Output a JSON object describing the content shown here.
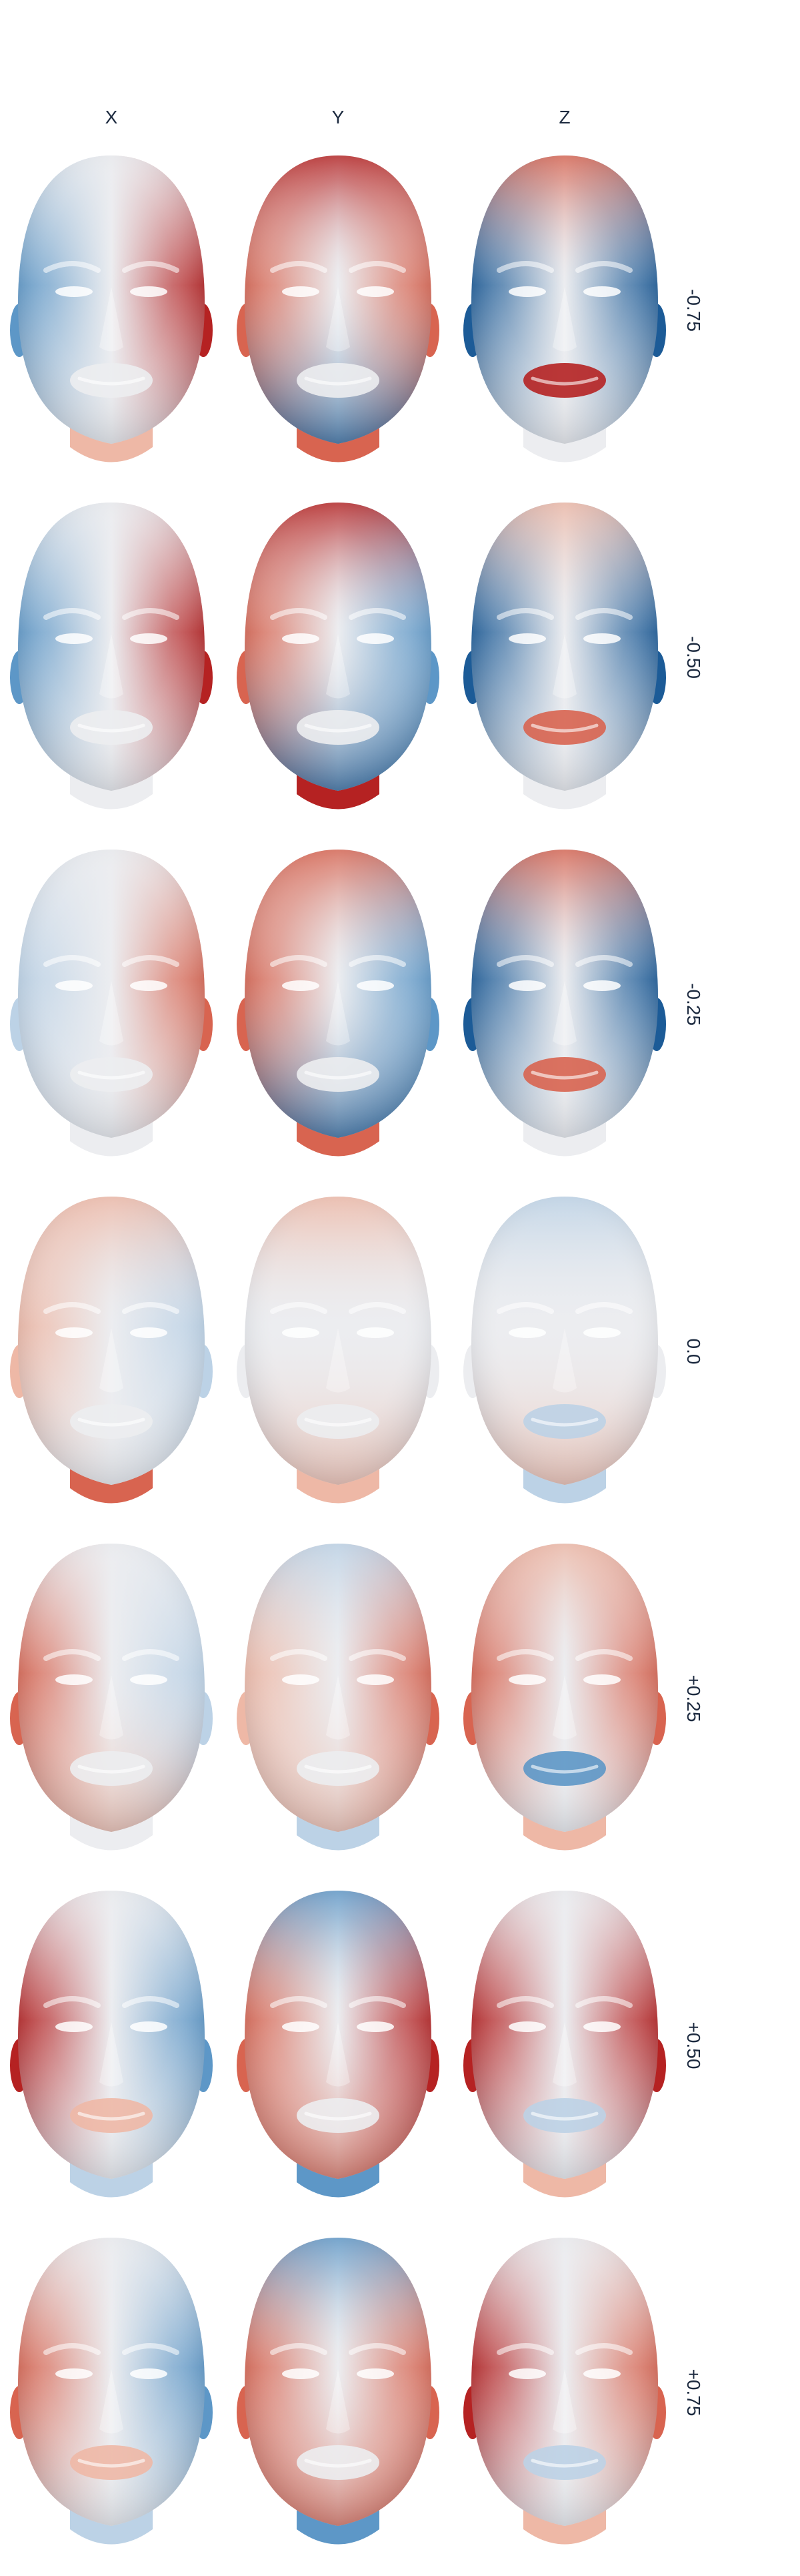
{
  "columns": [
    "X",
    "Y",
    "Z"
  ],
  "rows": [
    "-0.75",
    "-0.50",
    "-0.25",
    "0.0",
    "+0.25",
    "+0.50",
    "+0.75"
  ],
  "colors": {
    "red_strong": "#b52222",
    "red": "#d86450",
    "red_light": "#eeb8a6",
    "neutral": "#ecedf0",
    "blue_light": "#bcd2e6",
    "blue": "#5d97c7",
    "blue_strong": "#1c5b97"
  },
  "grid": [
    [
      {
        "left": "blue",
        "right": "red_strong",
        "top": "neutral",
        "bottom": "neutral",
        "neck": "red_light",
        "mouth": "neutral"
      },
      {
        "left": "red",
        "right": "red",
        "top": "red_strong",
        "bottom": "blue_strong",
        "neck": "red",
        "mouth": "neutral"
      },
      {
        "left": "blue_strong",
        "right": "blue_strong",
        "top": "red",
        "bottom": "neutral",
        "neck": "neutral",
        "mouth": "red_strong"
      }
    ],
    [
      {
        "left": "blue",
        "right": "red_strong",
        "top": "neutral",
        "bottom": "neutral",
        "neck": "neutral",
        "mouth": "neutral"
      },
      {
        "left": "red",
        "right": "blue",
        "top": "red_strong",
        "bottom": "blue_strong",
        "neck": "red_strong",
        "mouth": "neutral"
      },
      {
        "left": "blue_strong",
        "right": "blue_strong",
        "top": "red_light",
        "bottom": "neutral",
        "neck": "neutral",
        "mouth": "red"
      }
    ],
    [
      {
        "left": "blue_light",
        "right": "red",
        "top": "neutral",
        "bottom": "neutral",
        "neck": "neutral",
        "mouth": "neutral"
      },
      {
        "left": "red",
        "right": "blue",
        "top": "red",
        "bottom": "blue_strong",
        "neck": "red",
        "mouth": "neutral"
      },
      {
        "left": "blue_strong",
        "right": "blue_strong",
        "top": "red",
        "bottom": "neutral",
        "neck": "neutral",
        "mouth": "red"
      }
    ],
    [
      {
        "left": "red_light",
        "right": "blue_light",
        "top": "red_light",
        "bottom": "neutral",
        "neck": "red",
        "mouth": "neutral"
      },
      {
        "left": "neutral",
        "right": "neutral",
        "top": "red_light",
        "bottom": "red_light",
        "neck": "red_light",
        "mouth": "neutral"
      },
      {
        "left": "neutral",
        "right": "neutral",
        "top": "blue_light",
        "bottom": "red_light",
        "neck": "blue_light",
        "mouth": "blue_light"
      }
    ],
    [
      {
        "left": "red",
        "right": "blue_light",
        "top": "neutral",
        "bottom": "red_light",
        "neck": "neutral",
        "mouth": "neutral"
      },
      {
        "left": "red_light",
        "right": "red",
        "top": "blue_light",
        "bottom": "red_light",
        "neck": "blue_light",
        "mouth": "neutral"
      },
      {
        "left": "red",
        "right": "red",
        "top": "red_light",
        "bottom": "neutral",
        "neck": "red_light",
        "mouth": "blue"
      }
    ],
    [
      {
        "left": "red_strong",
        "right": "blue",
        "top": "neutral",
        "bottom": "neutral",
        "neck": "blue_light",
        "mouth": "red_light"
      },
      {
        "left": "red",
        "right": "red_strong",
        "top": "blue",
        "bottom": "red",
        "neck": "blue",
        "mouth": "neutral"
      },
      {
        "left": "red_strong",
        "right": "red_strong",
        "top": "neutral",
        "bottom": "neutral",
        "neck": "red_light",
        "mouth": "blue_light"
      }
    ],
    [
      {
        "left": "red",
        "right": "blue",
        "top": "neutral",
        "bottom": "neutral",
        "neck": "blue_light",
        "mouth": "red_light"
      },
      {
        "left": "red",
        "right": "red",
        "top": "blue",
        "bottom": "red",
        "neck": "blue",
        "mouth": "neutral"
      },
      {
        "left": "red_strong",
        "right": "red",
        "top": "neutral",
        "bottom": "neutral",
        "neck": "red_light",
        "mouth": "blue_light"
      }
    ]
  ]
}
